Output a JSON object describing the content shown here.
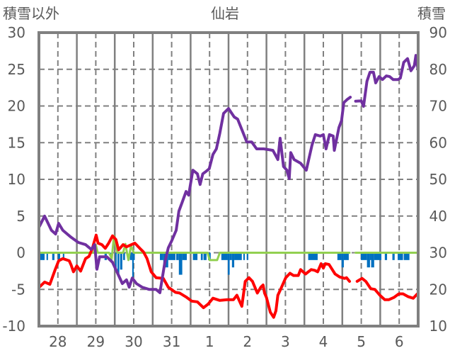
{
  "chart_data": {
    "type": "line",
    "title": "仙岩",
    "ylabel_left": "積雪以外",
    "ylabel_right": "積雪",
    "ylim_left": [
      -10,
      30
    ],
    "ylim_right": [
      10,
      90
    ],
    "y_ticks_left": [
      "30",
      "25",
      "20",
      "15",
      "10",
      "5",
      "0",
      "-5",
      "-10"
    ],
    "y_ticks_right": [
      "90",
      "80",
      "70",
      "60",
      "50",
      "40",
      "30",
      "20",
      "10"
    ],
    "x_categories": [
      "28",
      "29",
      "30",
      "31",
      "1",
      "2",
      "3",
      "4",
      "5",
      "6"
    ],
    "xlim_days": [
      -0.5,
      9.5
    ],
    "grid": true,
    "colors": {
      "snow": "#7030a0",
      "red": "#ff0000",
      "green": "#92d050",
      "bars": "#0070c0",
      "axis": "#808080"
    },
    "series": [
      {
        "id": "snow_depth",
        "axis": "right",
        "color": "#7030a0",
        "points": [
          [
            -0.49,
            37.1
          ],
          [
            -0.35,
            40.0
          ],
          [
            -0.17,
            36.1
          ],
          [
            -0.06,
            35.1
          ],
          [
            0.02,
            38.0
          ],
          [
            0.13,
            36.1
          ],
          [
            0.35,
            34.2
          ],
          [
            0.54,
            32.8
          ],
          [
            0.73,
            32.2
          ],
          [
            0.88,
            30.9
          ],
          [
            0.97,
            32.2
          ],
          [
            1.03,
            25.5
          ],
          [
            1.1,
            28.9
          ],
          [
            1.29,
            28.9
          ],
          [
            1.44,
            27.4
          ],
          [
            1.57,
            24.5
          ],
          [
            1.7,
            21.6
          ],
          [
            1.81,
            22.6
          ],
          [
            1.88,
            20.6
          ],
          [
            1.96,
            23.1
          ],
          [
            2.07,
            21.6
          ],
          [
            2.22,
            20.6
          ],
          [
            2.41,
            20.0
          ],
          [
            2.59,
            20.0
          ],
          [
            2.69,
            19.1
          ],
          [
            2.82,
            27.4
          ],
          [
            2.91,
            31.3
          ],
          [
            3.0,
            33.2
          ],
          [
            3.12,
            36.1
          ],
          [
            3.19,
            41.3
          ],
          [
            3.3,
            44.4
          ],
          [
            3.38,
            46.7
          ],
          [
            3.45,
            45.7
          ],
          [
            3.49,
            48.3
          ],
          [
            3.56,
            52.5
          ],
          [
            3.68,
            51.5
          ],
          [
            3.75,
            48.6
          ],
          [
            3.82,
            51.5
          ],
          [
            3.9,
            52.1
          ],
          [
            3.99,
            52.9
          ],
          [
            4.09,
            56.8
          ],
          [
            4.18,
            58.3
          ],
          [
            4.27,
            62.6
          ],
          [
            4.37,
            68.0
          ],
          [
            4.5,
            69.3
          ],
          [
            4.65,
            67.0
          ],
          [
            4.74,
            66.4
          ],
          [
            4.87,
            63.1
          ],
          [
            4.98,
            60.2
          ],
          [
            5.11,
            60.2
          ],
          [
            5.24,
            58.3
          ],
          [
            5.43,
            58.3
          ],
          [
            5.67,
            57.9
          ],
          [
            5.8,
            55.4
          ],
          [
            5.86,
            61.2
          ],
          [
            5.95,
            53.5
          ],
          [
            6.04,
            52.5
          ],
          [
            6.1,
            50.2
          ],
          [
            6.14,
            57.3
          ],
          [
            6.23,
            55.4
          ],
          [
            6.4,
            54.4
          ],
          [
            6.55,
            52.5
          ],
          [
            6.7,
            59.3
          ],
          [
            6.79,
            62.2
          ],
          [
            6.92,
            61.8
          ],
          [
            7.0,
            62.2
          ],
          [
            7.07,
            58.3
          ],
          [
            7.16,
            62.2
          ],
          [
            7.26,
            61.8
          ],
          [
            7.29,
            57.9
          ],
          [
            7.41,
            64.1
          ],
          [
            7.48,
            66.0
          ],
          [
            7.54,
            70.9
          ],
          [
            7.63,
            71.8
          ],
          [
            7.71,
            72.4
          ],
          null,
          [
            7.85,
            71.3
          ],
          [
            8.0,
            71.4
          ],
          [
            8.06,
            69.9
          ],
          [
            8.15,
            76.7
          ],
          [
            8.23,
            79.2
          ],
          [
            8.32,
            79.2
          ],
          [
            8.38,
            76.3
          ],
          [
            8.47,
            78.0
          ],
          [
            8.56,
            77.2
          ],
          [
            8.66,
            78.2
          ],
          [
            8.75,
            78.0
          ],
          [
            8.84,
            77.2
          ],
          [
            8.97,
            77.2
          ],
          [
            9.03,
            77.6
          ],
          [
            9.12,
            81.9
          ],
          [
            9.22,
            82.9
          ],
          [
            9.31,
            79.6
          ],
          [
            9.4,
            81.0
          ],
          [
            9.44,
            83.8
          ],
          [
            9.5,
            79.6
          ]
        ]
      },
      {
        "id": "red_line",
        "axis": "left",
        "color": "#ff0000",
        "points": [
          [
            -0.49,
            -4.7
          ],
          [
            -0.35,
            -4.0
          ],
          [
            -0.21,
            -4.3
          ],
          [
            -0.07,
            -2.3
          ],
          [
            0.02,
            -1.1
          ],
          [
            0.13,
            -0.8
          ],
          [
            0.3,
            -1.1
          ],
          [
            0.35,
            -1.7
          ],
          [
            0.41,
            -2.6
          ],
          [
            0.5,
            -1.8
          ],
          [
            0.6,
            -2.5
          ],
          [
            0.73,
            -0.8
          ],
          [
            0.82,
            -0.5
          ],
          [
            0.91,
            0.6
          ],
          [
            1.01,
            2.4
          ],
          [
            1.06,
            1.3
          ],
          [
            1.16,
            1.1
          ],
          [
            1.25,
            0.6
          ],
          [
            1.34,
            1.3
          ],
          [
            1.44,
            2.3
          ],
          [
            1.53,
            1.8
          ],
          [
            1.6,
            0.4
          ],
          [
            1.72,
            1.1
          ],
          [
            1.81,
            0.8
          ],
          [
            1.94,
            1.1
          ],
          [
            2.03,
            1.3
          ],
          [
            2.16,
            0.6
          ],
          [
            2.26,
            0.1
          ],
          [
            2.35,
            -0.8
          ],
          [
            2.46,
            -2.6
          ],
          [
            2.59,
            -3.4
          ],
          [
            2.78,
            -3.5
          ],
          [
            2.91,
            -4.7
          ],
          [
            3.1,
            -5.4
          ],
          [
            3.21,
            -5.5
          ],
          [
            3.4,
            -6.1
          ],
          [
            3.53,
            -6.6
          ],
          [
            3.68,
            -6.7
          ],
          [
            3.84,
            -7.5
          ],
          [
            3.96,
            -7.0
          ],
          [
            4.09,
            -6.2
          ],
          [
            4.27,
            -6.5
          ],
          [
            4.46,
            -6.4
          ],
          [
            4.63,
            -6.4
          ],
          [
            4.72,
            -5.8
          ],
          [
            4.85,
            -7.3
          ],
          [
            4.94,
            -3.9
          ],
          [
            5.04,
            -3.4
          ],
          [
            5.13,
            -3.9
          ],
          [
            5.26,
            -5.5
          ],
          [
            5.35,
            -4.7
          ],
          [
            5.41,
            -4.4
          ],
          [
            5.45,
            -5.5
          ],
          [
            5.5,
            -6.1
          ],
          [
            5.6,
            -8.1
          ],
          [
            5.69,
            -8.8
          ],
          [
            5.75,
            -7.9
          ],
          [
            5.8,
            -5.8
          ],
          [
            5.88,
            -4.9
          ],
          [
            6.01,
            -3.4
          ],
          [
            6.12,
            -2.8
          ],
          [
            6.21,
            -3.1
          ],
          [
            6.34,
            -3.1
          ],
          [
            6.4,
            -2.3
          ],
          [
            6.53,
            -2.9
          ],
          [
            6.68,
            -2.3
          ],
          [
            6.77,
            -2.4
          ],
          [
            6.85,
            -2.6
          ],
          [
            6.94,
            -1.5
          ],
          [
            7.0,
            -2.1
          ],
          [
            7.05,
            -1.5
          ],
          [
            7.15,
            -1.6
          ],
          [
            7.31,
            -2.9
          ],
          [
            7.43,
            -3.3
          ],
          [
            7.56,
            -3.5
          ],
          [
            7.61,
            -3.4
          ],
          [
            7.69,
            -3.9
          ],
          null,
          [
            7.89,
            -3.9
          ],
          [
            8.02,
            -3.5
          ],
          [
            8.12,
            -3.9
          ],
          [
            8.25,
            -4.9
          ],
          [
            8.36,
            -5.0
          ],
          [
            8.49,
            -5.8
          ],
          [
            8.62,
            -6.4
          ],
          [
            8.73,
            -6.4
          ],
          [
            8.86,
            -6.1
          ],
          [
            8.99,
            -5.6
          ],
          [
            9.1,
            -5.6
          ],
          [
            9.24,
            -6.0
          ],
          [
            9.37,
            -6.2
          ],
          [
            9.48,
            -5.6
          ]
        ]
      },
      {
        "id": "green_line",
        "axis": "left",
        "color": "#92d050",
        "points": [
          [
            -0.5,
            0
          ],
          [
            0.95,
            0
          ],
          [
            1.0,
            1.1
          ],
          [
            1.05,
            0
          ],
          [
            1.35,
            0
          ],
          [
            1.42,
            -0.8
          ],
          [
            1.48,
            2.3
          ],
          [
            1.57,
            0
          ],
          [
            1.72,
            0
          ],
          [
            1.78,
            1.2
          ],
          [
            1.86,
            -1.0
          ],
          [
            1.93,
            1.0
          ],
          [
            2.0,
            0
          ],
          [
            3.95,
            0
          ],
          [
            4.0,
            -1.0
          ],
          [
            4.2,
            -1.0
          ],
          [
            4.27,
            0
          ],
          [
            7.69,
            0
          ],
          null,
          [
            7.85,
            0
          ],
          [
            9.5,
            0
          ]
        ]
      }
    ],
    "bars": {
      "axis": "left",
      "color": "#0070c0",
      "items": [
        [
          -0.49,
          -0.35,
          -1.0
        ],
        [
          -0.3,
          -0.26,
          -1.0
        ],
        [
          -0.15,
          -0.09,
          -1.0
        ],
        [
          0.0,
          0.06,
          -1.0
        ],
        [
          0.13,
          0.17,
          -1.0
        ],
        [
          1.23,
          1.29,
          -1.0
        ],
        [
          1.38,
          1.44,
          -1.0
        ],
        [
          1.51,
          1.55,
          -2.5
        ],
        [
          1.57,
          1.62,
          -3.0
        ],
        [
          1.64,
          1.7,
          -2.3
        ],
        [
          1.72,
          1.77,
          -1.0
        ],
        [
          1.9,
          1.96,
          -1.0
        ],
        [
          1.96,
          2.0,
          -3.3
        ],
        [
          2.0,
          2.02,
          -1.0
        ],
        [
          2.69,
          2.78,
          -1.0
        ],
        [
          2.78,
          2.91,
          -2.0
        ],
        [
          2.91,
          3.1,
          -1.0
        ],
        [
          3.12,
          3.19,
          -1.0
        ],
        [
          3.19,
          3.28,
          -3.0
        ],
        [
          3.28,
          3.4,
          -1.0
        ],
        [
          3.56,
          3.68,
          -1.0
        ],
        [
          3.77,
          3.82,
          -1.0
        ],
        [
          3.84,
          3.92,
          -1.0
        ],
        [
          3.96,
          4.03,
          -1.0
        ],
        [
          4.31,
          4.48,
          -1.0
        ],
        [
          4.48,
          4.53,
          -3.0
        ],
        [
          4.53,
          4.59,
          -1.0
        ],
        [
          4.59,
          4.65,
          -2.0
        ],
        [
          4.65,
          4.85,
          -1.0
        ],
        [
          4.89,
          4.93,
          -1.0
        ],
        [
          4.98,
          5.02,
          -1.0
        ],
        [
          6.6,
          6.85,
          -1.0
        ],
        [
          7.37,
          7.48,
          -1.0
        ],
        [
          7.48,
          7.54,
          -2.0
        ],
        [
          7.54,
          7.67,
          -1.0
        ],
        [
          7.99,
          8.15,
          -1.0
        ],
        [
          8.15,
          8.23,
          -2.0
        ],
        [
          8.23,
          8.26,
          -1.0
        ],
        [
          8.26,
          8.34,
          -2.0
        ],
        [
          8.34,
          8.53,
          -1.0
        ],
        [
          8.62,
          8.68,
          -1.0
        ],
        [
          8.82,
          8.88,
          -1.0
        ],
        [
          8.96,
          9.1,
          -1.0
        ],
        [
          9.12,
          9.27,
          -1.0
        ]
      ]
    }
  }
}
